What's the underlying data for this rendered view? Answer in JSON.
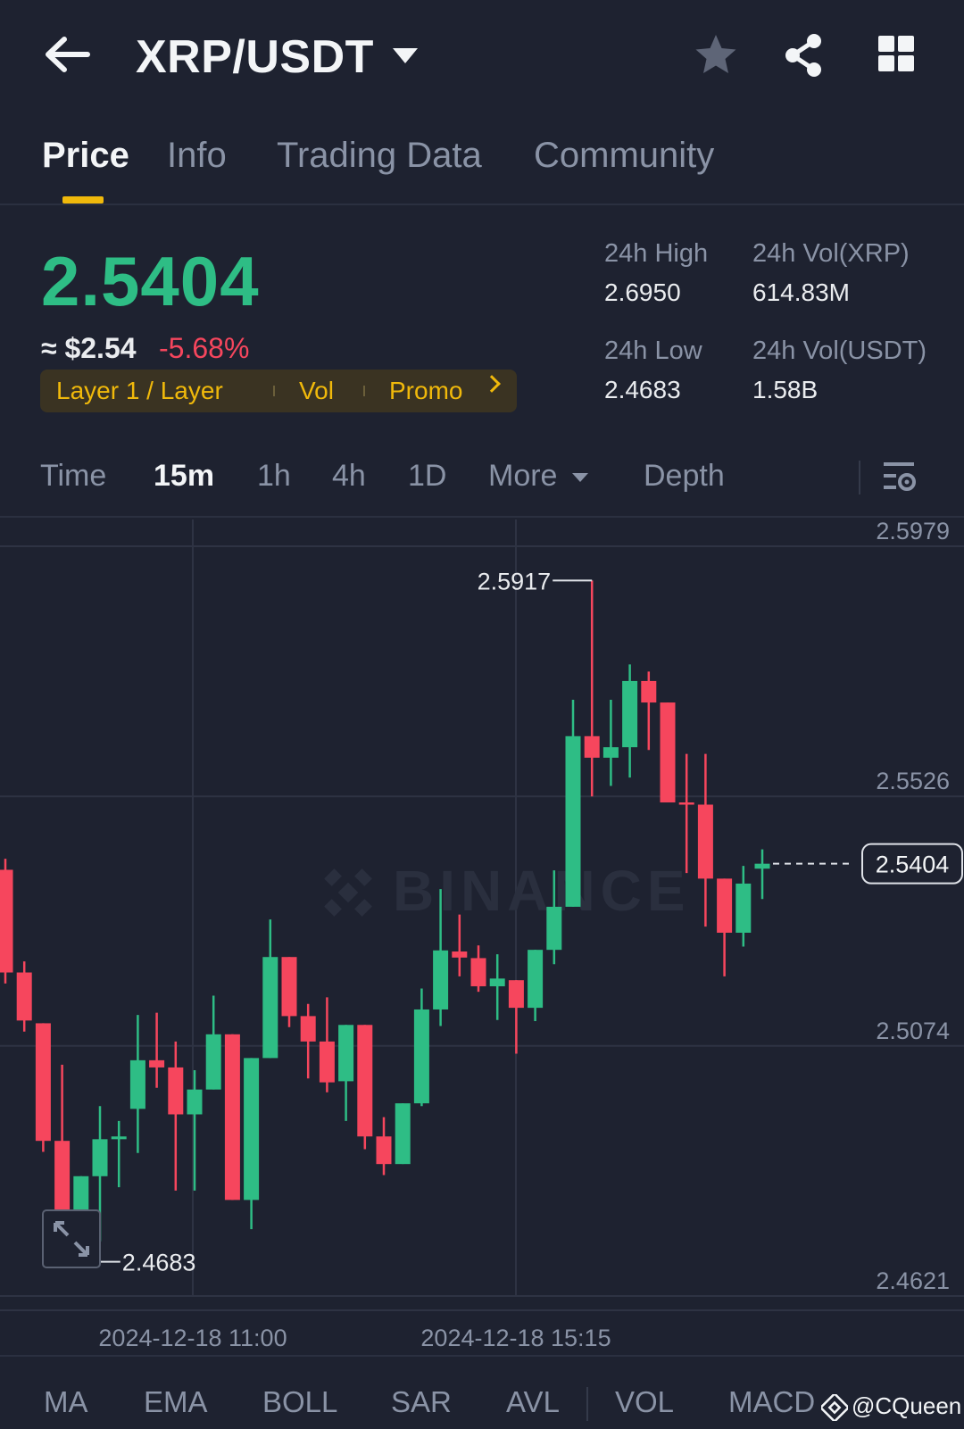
{
  "header": {
    "pair": "XRP/USDT",
    "icons": [
      "back-arrow-icon",
      "dropdown-caret-icon",
      "star-icon",
      "share-icon",
      "grid-menu-icon"
    ]
  },
  "tabs": [
    {
      "label": "Price",
      "active": true
    },
    {
      "label": "Info",
      "active": false
    },
    {
      "label": "Trading Data",
      "active": false
    },
    {
      "label": "Community",
      "active": false
    }
  ],
  "price": {
    "last": "2.5404",
    "approx": "≈ $2.54",
    "change": "-5.68%",
    "tags": [
      "Layer 1 / Layer",
      "Vol",
      "Promo"
    ],
    "stats": {
      "high_label": "24h High",
      "high": "2.6950",
      "low_label": "24h Low",
      "low": "2.4683",
      "vol_xrp_label": "24h Vol(XRP)",
      "vol_xrp": "614.83M",
      "vol_usdt_label": "24h Vol(USDT)",
      "vol_usdt": "1.58B"
    }
  },
  "intervals": {
    "items": [
      "Time",
      "15m",
      "1h",
      "4h",
      "1D",
      "More"
    ],
    "active": "15m",
    "depth": "Depth"
  },
  "chart_data": {
    "type": "candlestick",
    "interval": "15m",
    "y_ticks": [
      "2.5979",
      "2.5526",
      "2.5074",
      "2.4621"
    ],
    "ylim": [
      2.4621,
      2.5979
    ],
    "x_ticks": [
      "2024-12-18 11:00",
      "2024-12-18 15:15"
    ],
    "last_price": "2.5404",
    "max_label": "2.5917",
    "min_label": "2.4683",
    "watermark": "BINANCE",
    "candles": [
      {
        "o": 2.5393,
        "c": 2.5207,
        "h": 2.5413,
        "l": 2.5187
      },
      {
        "o": 2.5207,
        "c": 2.512,
        "h": 2.5227,
        "l": 2.51
      },
      {
        "o": 2.5115,
        "c": 2.4902,
        "h": 2.5115,
        "l": 2.4882
      },
      {
        "o": 2.4902,
        "c": 2.4765,
        "h": 2.504,
        "l": 2.472
      },
      {
        "o": 2.4765,
        "c": 2.4838,
        "h": 2.4838,
        "l": 2.4683
      },
      {
        "o": 2.4838,
        "c": 2.4905,
        "h": 2.4965,
        "l": 2.472
      },
      {
        "o": 2.4905,
        "c": 2.491,
        "h": 2.4938,
        "l": 2.4818
      },
      {
        "o": 2.496,
        "c": 2.5048,
        "h": 2.513,
        "l": 2.488
      },
      {
        "o": 2.5048,
        "c": 2.5035,
        "h": 2.5134,
        "l": 2.4998
      },
      {
        "o": 2.5035,
        "c": 2.495,
        "h": 2.5082,
        "l": 2.4812
      },
      {
        "o": 2.495,
        "c": 2.4995,
        "h": 2.503,
        "l": 2.4812
      },
      {
        "o": 2.4995,
        "c": 2.5095,
        "h": 2.5165,
        "l": 2.4995
      },
      {
        "o": 2.5095,
        "c": 2.4795,
        "h": 2.5095,
        "l": 2.4795
      },
      {
        "o": 2.4795,
        "c": 2.5052,
        "h": 2.5052,
        "l": 2.4742
      },
      {
        "o": 2.5052,
        "c": 2.5235,
        "h": 2.5303,
        "l": 2.5052
      },
      {
        "o": 2.5235,
        "c": 2.5128,
        "h": 2.5235,
        "l": 2.5108
      },
      {
        "o": 2.5128,
        "c": 2.5082,
        "h": 2.515,
        "l": 2.5015
      },
      {
        "o": 2.5082,
        "c": 2.5008,
        "h": 2.5162,
        "l": 2.499
      },
      {
        "o": 2.501,
        "c": 2.5112,
        "h": 2.5112,
        "l": 2.4938
      },
      {
        "o": 2.5112,
        "c": 2.491,
        "h": 2.5112,
        "l": 2.4887
      },
      {
        "o": 2.491,
        "c": 2.486,
        "h": 2.4945,
        "l": 2.484
      },
      {
        "o": 2.486,
        "c": 2.497,
        "h": 2.497,
        "l": 2.486
      },
      {
        "o": 2.497,
        "c": 2.514,
        "h": 2.5178,
        "l": 2.4965
      },
      {
        "o": 2.514,
        "c": 2.5247,
        "h": 2.5358,
        "l": 2.511
      },
      {
        "o": 2.5245,
        "c": 2.5234,
        "h": 2.5312,
        "l": 2.52
      },
      {
        "o": 2.5233,
        "c": 2.5182,
        "h": 2.5256,
        "l": 2.5172
      },
      {
        "o": 2.5182,
        "c": 2.5196,
        "h": 2.524,
        "l": 2.5121
      },
      {
        "o": 2.5193,
        "c": 2.5143,
        "h": 2.5193,
        "l": 2.506
      },
      {
        "o": 2.5143,
        "c": 2.5248,
        "h": 2.5248,
        "l": 2.5119
      },
      {
        "o": 2.5248,
        "c": 2.5326,
        "h": 2.5392,
        "l": 2.5222
      },
      {
        "o": 2.5326,
        "c": 2.5635,
        "h": 2.5701,
        "l": 2.5326
      },
      {
        "o": 2.5635,
        "c": 2.5596,
        "h": 2.5917,
        "l": 2.5526
      },
      {
        "o": 2.5596,
        "c": 2.5615,
        "h": 2.5701,
        "l": 2.5545
      },
      {
        "o": 2.5615,
        "c": 2.5735,
        "h": 2.5765,
        "l": 2.556
      },
      {
        "o": 2.5735,
        "c": 2.5696,
        "h": 2.5752,
        "l": 2.561
      },
      {
        "o": 2.5696,
        "c": 2.5515,
        "h": 2.5696,
        "l": 2.5515
      },
      {
        "o": 2.5515,
        "c": 2.5511,
        "h": 2.5603,
        "l": 2.5387
      },
      {
        "o": 2.5511,
        "c": 2.5377,
        "h": 2.5603,
        "l": 2.529
      },
      {
        "o": 2.5377,
        "c": 2.5279,
        "h": 2.5377,
        "l": 2.52
      },
      {
        "o": 2.5279,
        "c": 2.5368,
        "h": 2.54,
        "l": 2.5254
      },
      {
        "o": 2.5395,
        "c": 2.5404,
        "h": 2.543,
        "l": 2.534
      }
    ]
  },
  "indicators": [
    "MA",
    "EMA",
    "BOLL",
    "SAR",
    "AVL",
    "VOL",
    "MACD"
  ],
  "credit": "@CQueen",
  "colors": {
    "bg": "#1e2230",
    "up": "#2ebd85",
    "down": "#f6465d",
    "accent": "#f0b90b",
    "muted": "#8a93a6"
  }
}
